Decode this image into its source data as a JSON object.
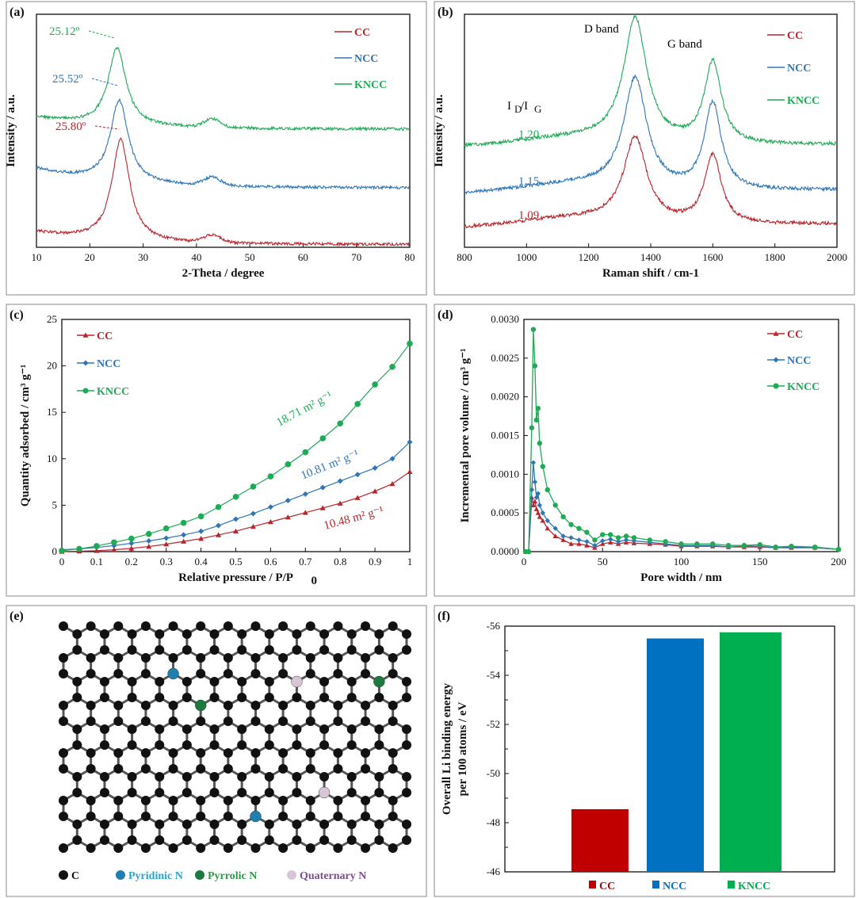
{
  "colors": {
    "CC": "#b8262c",
    "NCC": "#2e75b6",
    "KNCC": "#1faa55",
    "bar_CC": "#c00000",
    "bar_NCC": "#0070c0",
    "bar_KNCC": "#00b050"
  },
  "chart_data": [
    {
      "id": "a",
      "panel_label": "(a)",
      "type": "line",
      "xlabel": "2-Theta / degree",
      "ylabel": "Intensity / a.u.",
      "xlim": [
        10,
        80
      ],
      "ylim": [
        0,
        10
      ],
      "xticks": [
        "10",
        "20",
        "30",
        "40",
        "50",
        "60",
        "70",
        "80"
      ],
      "legend": [
        "CC",
        "NCC",
        "KNCC"
      ],
      "legend_position": "top-right",
      "series": [
        {
          "name": "CC",
          "bg_start": 0.65,
          "bg_end": 0.12,
          "peak_2theta": 25.8,
          "peak_intensity": 5.0,
          "secondary_peak_2theta": 43,
          "secondary_intensity": 0.3
        },
        {
          "name": "NCC",
          "bg_start": 3.37,
          "bg_end": 2.55,
          "peak_2theta": 25.52,
          "peak_intensity": 6.87,
          "secondary_peak_2theta": 43,
          "secondary_intensity": 0.35
        },
        {
          "name": "KNCC",
          "bg_start": 5.58,
          "bg_end": 5.07,
          "peak_2theta": 25.12,
          "peak_intensity": 8.9,
          "secondary_peak_2theta": 43,
          "secondary_intensity": 0.35
        }
      ],
      "annotations": [
        "25.12º",
        "25.52º",
        "25.80º"
      ]
    },
    {
      "id": "b",
      "panel_label": "(b)",
      "type": "line",
      "xlabel": "Raman shift / cm-1",
      "ylabel": "Intensity / a.u.",
      "xlim": [
        800,
        2000
      ],
      "ylim": [
        0,
        10
      ],
      "xticks": [
        "800",
        "1000",
        "1200",
        "1400",
        "1600",
        "1800",
        "2000"
      ],
      "legend": [
        "CC",
        "NCC",
        "KNCC"
      ],
      "legend_position": "top-right",
      "band_labels": [
        "D band",
        "G band"
      ],
      "ratio_label": {
        "i1": "I",
        "s1": "D",
        "i2": "/I",
        "s2": "G"
      },
      "series": [
        {
          "name": "CC",
          "ID_IG": "1.09",
          "baseline_start": 0.82,
          "baseline_end": 1.0,
          "D_shift": 1350,
          "D_intensity": 4.76,
          "G_shift": 1600,
          "G_intensity": 4.29
        },
        {
          "name": "NCC",
          "ID_IG": "1.15",
          "baseline_start": 2.28,
          "baseline_end": 2.45,
          "D_shift": 1350,
          "D_intensity": 7.3,
          "G_shift": 1600,
          "G_intensity": 6.5
        },
        {
          "name": "KNCC",
          "ID_IG": "1.20",
          "baseline_start": 4.29,
          "baseline_end": 4.4,
          "D_shift": 1350,
          "D_intensity": 9.9,
          "G_shift": 1600,
          "G_intensity": 8.3
        }
      ]
    },
    {
      "id": "c",
      "panel_label": "(c)",
      "type": "line",
      "xlabel": "Relative pressure / P/P",
      "xlabel_sub": "0",
      "ylabel": "Quantity adsorbed / cm³ g⁻¹",
      "xlim": [
        0,
        1
      ],
      "ylim": [
        0,
        25
      ],
      "xticks": [
        "0",
        "0.1",
        "0.2",
        "0.3",
        "0.4",
        "0.5",
        "0.6",
        "0.7",
        "0.8",
        "0.9",
        "1"
      ],
      "yticks": [
        "0",
        "5",
        "10",
        "15",
        "20",
        "25"
      ],
      "legend": [
        "CC",
        "NCC",
        "KNCC"
      ],
      "legend_position": "top-left",
      "x": [
        0,
        0.05,
        0.1,
        0.15,
        0.2,
        0.25,
        0.3,
        0.35,
        0.4,
        0.45,
        0.5,
        0.55,
        0.6,
        0.65,
        0.7,
        0.75,
        0.8,
        0.85,
        0.9,
        0.95,
        1
      ],
      "series": [
        {
          "name": "CC",
          "marker": "triangle",
          "surface_area": "10.48 m² g⁻¹",
          "values": [
            0,
            0.05,
            0.1,
            0.2,
            0.35,
            0.55,
            0.8,
            1.1,
            1.4,
            1.8,
            2.2,
            2.7,
            3.2,
            3.7,
            4.2,
            4.7,
            5.2,
            5.8,
            6.5,
            7.3,
            8.6
          ]
        },
        {
          "name": "NCC",
          "marker": "diamond",
          "surface_area": "10.81 m² g⁻¹",
          "values": [
            0.2,
            0.3,
            0.45,
            0.65,
            0.9,
            1.15,
            1.45,
            1.8,
            2.2,
            2.8,
            3.5,
            4.1,
            4.8,
            5.5,
            6.2,
            6.9,
            7.6,
            8.3,
            9.0,
            10.0,
            11.8
          ]
        },
        {
          "name": "KNCC",
          "marker": "circle",
          "surface_area": "18.71 m² g⁻¹",
          "values": [
            0.1,
            0.3,
            0.6,
            1.0,
            1.4,
            1.9,
            2.5,
            3.1,
            3.8,
            4.8,
            5.9,
            7.0,
            8.1,
            9.4,
            10.7,
            12.2,
            13.8,
            15.9,
            18.0,
            19.9,
            22.4
          ]
        }
      ]
    },
    {
      "id": "d",
      "panel_label": "(d)",
      "type": "line",
      "xlabel": "Pore width / nm",
      "ylabel": "Incremental pore volume / cm³ g⁻¹",
      "xlim": [
        0,
        200
      ],
      "ylim": [
        0,
        0.003
      ],
      "xticks": [
        "0",
        "50",
        "100",
        "150",
        "200"
      ],
      "yticks": [
        "0.0000",
        "0.0005",
        "0.0010",
        "0.0015",
        "0.0020",
        "0.0025",
        "0.0030"
      ],
      "legend": [
        "CC",
        "NCC",
        "KNCC"
      ],
      "legend_position": "top-right",
      "x": [
        1,
        3,
        5,
        6,
        7,
        8,
        9,
        10,
        12,
        15,
        20,
        25,
        30,
        35,
        40,
        45,
        50,
        55,
        60,
        65,
        70,
        80,
        90,
        100,
        110,
        120,
        130,
        140,
        150,
        160,
        170,
        185,
        200
      ],
      "series": [
        {
          "name": "CC",
          "marker": "triangle",
          "values": [
            0,
            0,
            0.0007,
            0.0006,
            0.00065,
            0.00055,
            0.0005,
            0.00045,
            0.0004,
            0.0003,
            0.0002,
            0.00015,
            0.0001,
            0.0001,
            8e-05,
            5e-05,
            0.0001,
            0.00012,
            0.0001,
            0.00012,
            0.00011,
            0.0001,
            9e-05,
            7e-05,
            7e-05,
            7e-05,
            6e-05,
            6e-05,
            6e-05,
            5e-05,
            5e-05,
            5e-05,
            3e-05
          ]
        },
        {
          "name": "NCC",
          "marker": "diamond",
          "values": [
            0,
            0,
            0.0008,
            0.00115,
            0.0009,
            0.0007,
            0.00075,
            0.0006,
            0.0005,
            0.0004,
            0.0003,
            0.0002,
            0.00018,
            0.00015,
            0.00013,
            8e-05,
            0.00014,
            0.00016,
            0.00013,
            0.00015,
            0.00014,
            0.00012,
            0.0001,
            8e-05,
            8e-05,
            8e-05,
            6e-05,
            7e-05,
            7e-05,
            5e-05,
            6e-05,
            5e-05,
            3e-05
          ]
        },
        {
          "name": "KNCC",
          "marker": "circle",
          "values": [
            0,
            0,
            0.0016,
            0.00287,
            0.0024,
            0.0017,
            0.00185,
            0.0014,
            0.0011,
            0.0008,
            0.0006,
            0.00045,
            0.00035,
            0.0003,
            0.00025,
            0.00015,
            0.00022,
            0.00022,
            0.00018,
            0.0002,
            0.00018,
            0.00015,
            0.00013,
            0.0001,
            0.0001,
            0.0001,
            8e-05,
            8e-05,
            9e-05,
            6e-05,
            7e-05,
            6e-05,
            3e-05
          ]
        }
      ]
    },
    {
      "id": "f",
      "panel_label": "(f)",
      "type": "bar",
      "ylabel": "Overall Li binding energy",
      "ylabel2": "per 100 atoms / eV",
      "ylim": [
        -46,
        -56
      ],
      "yticks": [
        "-46",
        "-48",
        "-50",
        "-52",
        "-54",
        "-56"
      ],
      "categories": [
        "CC",
        "NCC",
        "KNCC"
      ],
      "values": [
        -48.55,
        -55.5,
        -55.75
      ],
      "legend_position": "bottom"
    }
  ],
  "panel_e": {
    "panel_label": "(e)",
    "legend": [
      {
        "label": "C",
        "color": "#111111",
        "text_color": "#111111"
      },
      {
        "label": "Pyridinic N",
        "color": "#1f7fae",
        "text_color": "#29a3c9"
      },
      {
        "label": "Pyrrolic N",
        "color": "#1d7a3e",
        "text_color": "#2e9a4a"
      },
      {
        "label": "Quaternary N",
        "color": "#d8c6d6",
        "text_color": "#7a4f8c"
      }
    ]
  }
}
